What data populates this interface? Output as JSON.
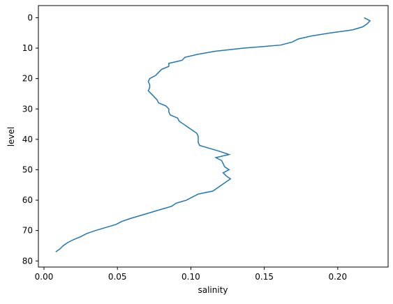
{
  "chart_data": {
    "type": "line",
    "x_label": "salinity",
    "y_label": "level",
    "levels": [
      0,
      1,
      2,
      3,
      4,
      5,
      6,
      7,
      8,
      9,
      10,
      11,
      12,
      13,
      14,
      15,
      16,
      17,
      18,
      19,
      20,
      21,
      22,
      23,
      24,
      25,
      26,
      27,
      28,
      29,
      30,
      31,
      32,
      33,
      34,
      35,
      36,
      37,
      38,
      39,
      40,
      41,
      42,
      43,
      44,
      45,
      46,
      47,
      48,
      49,
      50,
      51,
      52,
      53,
      54,
      55,
      56,
      57,
      58,
      59,
      60,
      61,
      62,
      63,
      64,
      65,
      66,
      67,
      68,
      69,
      70,
      71,
      72,
      73,
      74,
      75,
      76,
      77
    ],
    "series": [
      {
        "color": "#1f77b4",
        "values": [
          0.218,
          0.222,
          0.22,
          0.217,
          0.21,
          0.195,
          0.182,
          0.173,
          0.169,
          0.161,
          0.136,
          0.117,
          0.105,
          0.096,
          0.094,
          0.085,
          0.085,
          0.08,
          0.078,
          0.076,
          0.072,
          0.071,
          0.072,
          0.072,
          0.071,
          0.073,
          0.075,
          0.077,
          0.078,
          0.083,
          0.085,
          0.085,
          0.086,
          0.091,
          0.092,
          0.095,
          0.098,
          0.101,
          0.104,
          0.105,
          0.105,
          0.105,
          0.106,
          0.113,
          0.12,
          0.126,
          0.117,
          0.121,
          0.122,
          0.123,
          0.126,
          0.122,
          0.124,
          0.127,
          0.124,
          0.121,
          0.118,
          0.115,
          0.105,
          0.101,
          0.097,
          0.09,
          0.087,
          0.08,
          0.073,
          0.066,
          0.059,
          0.053,
          0.049,
          0.042,
          0.035,
          0.029,
          0.025,
          0.02,
          0.016,
          0.013,
          0.011,
          0.008
        ]
      }
    ],
    "xlim": [
      -0.0038,
      0.2343
    ],
    "xticks": [
      {
        "value": 0,
        "label": "0.00"
      },
      0.05,
      {
        "value": 0.1,
        "label": "0.10"
      },
      0.15,
      {
        "value": 0.2,
        "label": "0.20"
      }
    ],
    "ylim": [
      82,
      -4
    ],
    "yticks": [
      0,
      10,
      20,
      30,
      40,
      50,
      60,
      70,
      80
    ]
  }
}
